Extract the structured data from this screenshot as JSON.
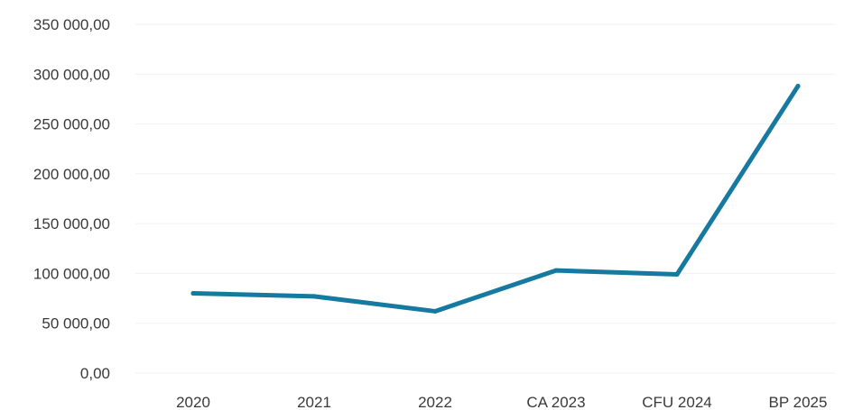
{
  "chart_data": {
    "type": "line",
    "title": "",
    "xlabel": "",
    "ylabel": "",
    "categories": [
      "2020",
      "2021",
      "2022",
      "CA 2023",
      "CFU 2024",
      "BP 2025"
    ],
    "series": [
      {
        "values": [
          80000,
          77000,
          62000,
          103000,
          99000,
          288000
        ]
      }
    ],
    "ylim": [
      0,
      350000
    ],
    "y_ticks": [
      "0,00",
      "50 000,00",
      "100 000,00",
      "150 000,00",
      "200 000,00",
      "250 000,00",
      "300 000,00",
      "350 000,00"
    ],
    "grid": true,
    "legend": "none",
    "line_color": "#16799f"
  }
}
